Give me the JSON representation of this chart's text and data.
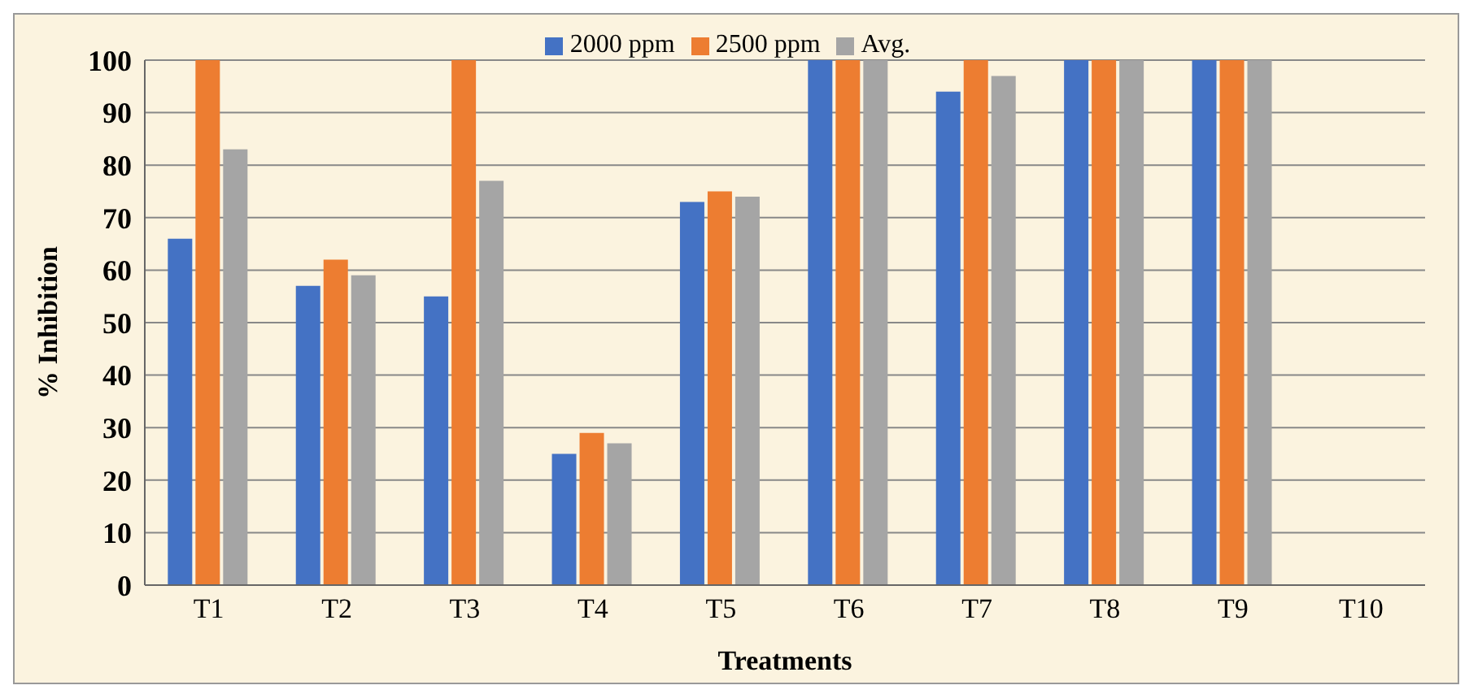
{
  "chart_data": {
    "type": "bar",
    "xlabel": "Treatments",
    "ylabel": "% Inhibition",
    "categories": [
      "T1",
      "T2",
      "T3",
      "T4",
      "T5",
      "T6",
      "T7",
      "T8",
      "T9",
      "T10"
    ],
    "series": [
      {
        "name": "2000 ppm",
        "color": "#4472c4",
        "values": [
          66,
          57,
          55,
          25,
          73,
          100,
          94,
          100,
          100,
          0
        ]
      },
      {
        "name": "2500 ppm",
        "color": "#ed7d31",
        "values": [
          100,
          62,
          100,
          29,
          75,
          100,
          100,
          100,
          100,
          0
        ]
      },
      {
        "name": "Avg.",
        "color": "#a5a5a5",
        "values": [
          83,
          59,
          77,
          27,
          74,
          100,
          97,
          100,
          100,
          0
        ]
      }
    ],
    "ylim": [
      0,
      100
    ],
    "yticks": [
      0,
      10,
      20,
      30,
      40,
      50,
      60,
      70,
      80,
      90,
      100
    ],
    "grid": "y",
    "legend": "top"
  }
}
